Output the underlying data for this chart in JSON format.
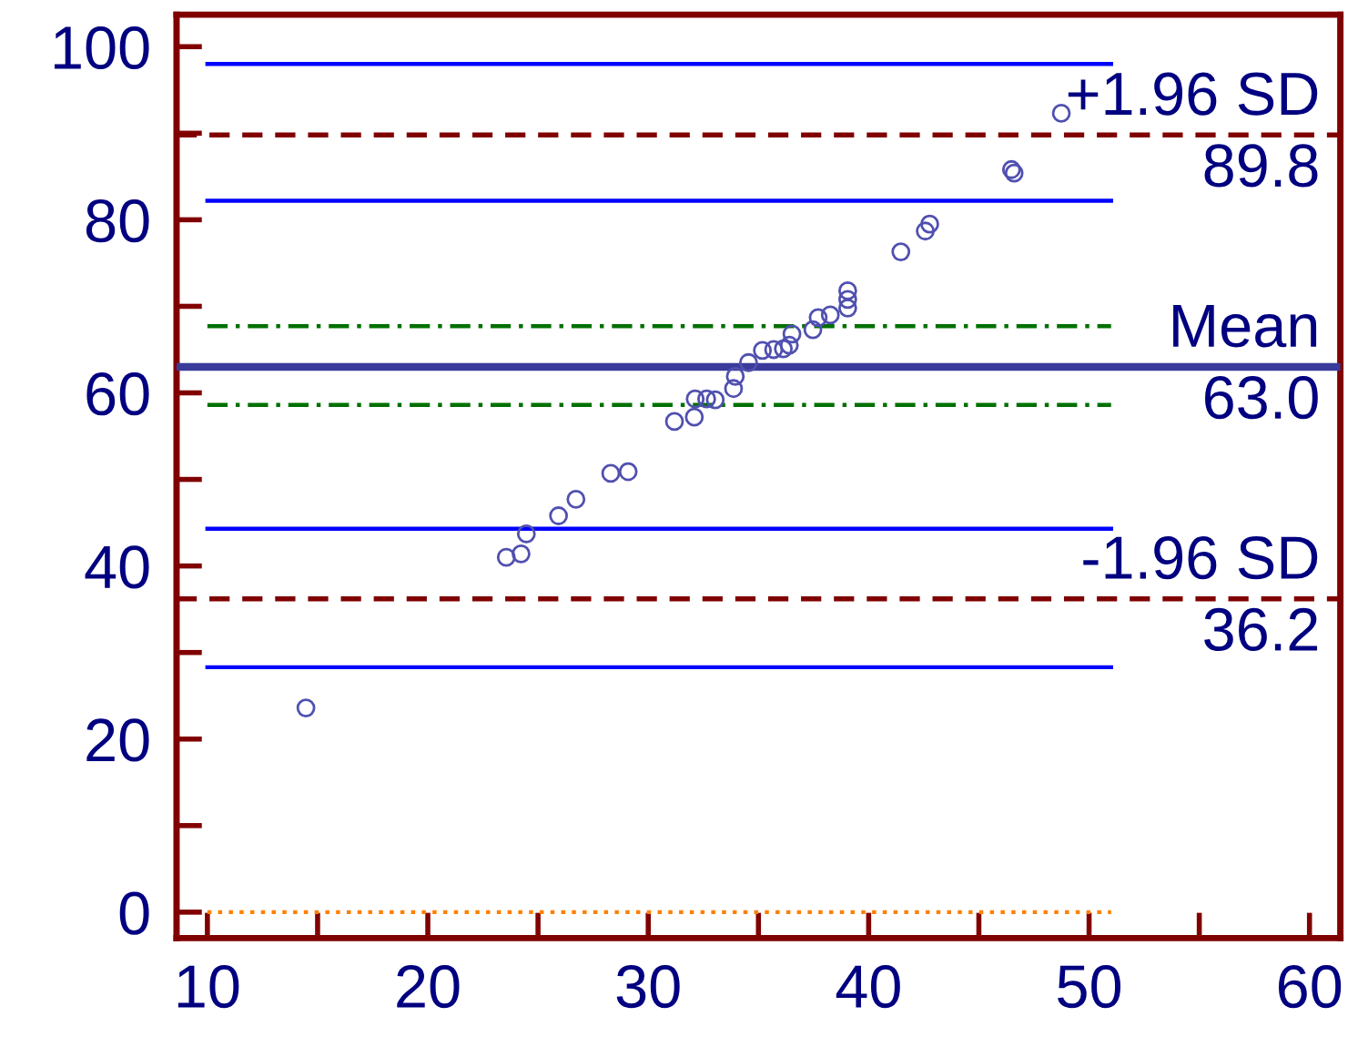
{
  "chart_data": {
    "type": "scatter",
    "xlim": [
      8.6,
      61.4
    ],
    "ylim": [
      -3,
      103.7
    ],
    "xticks": [
      10,
      {
        "value": 15,
        "label": null
      },
      20,
      {
        "value": 25,
        "label": null
      },
      30,
      {
        "value": 35,
        "label": null
      },
      40,
      {
        "value": 45,
        "label": null
      },
      50,
      {
        "value": 55,
        "label": null
      },
      60
    ],
    "yticks": [
      0,
      {
        "value": 10,
        "label": null
      },
      20,
      {
        "value": 30,
        "label": null
      },
      40,
      {
        "value": 50,
        "label": null
      },
      60,
      {
        "value": 70,
        "label": null
      },
      80,
      {
        "value": 90,
        "label": null
      },
      100
    ],
    "grid": false,
    "series": [
      {
        "color": "#5050b0",
        "marker": "circle",
        "x": [
          14.47,
          23.56,
          24.23,
          24.47,
          25.93,
          26.72,
          28.3,
          29.09,
          31.19,
          32.09,
          32.13,
          32.65,
          33.04,
          33.87,
          33.95,
          34.55,
          35.18,
          35.69,
          36.13,
          36.4,
          36.52,
          37.47,
          37.71,
          38.26,
          39.05,
          39.05,
          39.05,
          41.46,
          42.57,
          42.77,
          46.48,
          46.6,
          48.74
        ],
        "values": [
          23.6,
          41.0,
          41.4,
          43.7,
          45.8,
          47.7,
          50.7,
          50.9,
          56.7,
          57.2,
          59.3,
          59.3,
          59.2,
          60.5,
          61.9,
          63.5,
          64.9,
          65.0,
          65.1,
          65.5,
          66.8,
          67.3,
          68.7,
          69.0,
          69.8,
          70.8,
          71.8,
          76.3,
          78.7,
          79.5,
          85.8,
          85.4,
          92.3
        ]
      },
      {
        "type": "line",
        "color": "#0000ff",
        "line_style": "solid",
        "x": [
          10,
          51
        ],
        "values": [
          98.0,
          98.0
        ]
      },
      {
        "type": "line",
        "color": "#0000ff",
        "line_style": "solid",
        "x": [
          10,
          51
        ],
        "values": [
          82.2,
          82.2
        ]
      },
      {
        "type": "line",
        "color": "#007000",
        "line_style": "dashdot",
        "x": [
          10,
          51
        ],
        "values": [
          67.7,
          67.7
        ]
      },
      {
        "type": "line",
        "color": "#007000",
        "line_style": "dashdot",
        "x": [
          10,
          51
        ],
        "values": [
          58.6,
          58.6
        ]
      },
      {
        "type": "line",
        "color": "#0000ff",
        "line_style": "solid",
        "x": [
          10,
          51
        ],
        "values": [
          44.3,
          44.3
        ]
      },
      {
        "type": "line",
        "color": "#0000ff",
        "line_style": "solid",
        "x": [
          10,
          51
        ],
        "values": [
          28.3,
          28.3
        ]
      },
      {
        "type": "line",
        "color": "#ff8000",
        "line_style": "dotted",
        "x": [
          10,
          51
        ],
        "values": [
          0,
          0
        ]
      }
    ],
    "ref_lines": [
      {
        "axis": "y",
        "value": 89.8,
        "label": "+1.96 SD",
        "color": "#800000",
        "line_style": "dashed"
      },
      {
        "axis": "y",
        "value": 63.0,
        "label": "Mean",
        "color": "#3a3a9a",
        "line_style": "solid"
      },
      {
        "axis": "y",
        "value": 36.2,
        "label": "-1.96 SD",
        "color": "#800000",
        "line_style": "dashed"
      }
    ],
    "annotations": [
      {
        "text": "89.8",
        "y": 89.8
      },
      {
        "text": "63.0",
        "y": 63.0
      },
      {
        "text": "36.2",
        "y": 36.2
      }
    ]
  }
}
